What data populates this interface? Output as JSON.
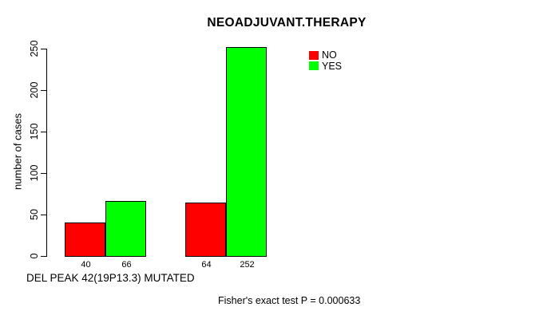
{
  "chart_data": {
    "type": "bar",
    "title": "NEOADJUVANT.THERAPY",
    "ylabel": "number of cases",
    "xlabel": "DEL PEAK 42(19P13.3) MUTATED",
    "footnote": "Fisher's exact test P = 0.000633",
    "ylim": [
      0,
      250
    ],
    "yticks": [
      0,
      50,
      100,
      150,
      200,
      250
    ],
    "grid": false,
    "legend": {
      "position": "topright",
      "entries": [
        {
          "label": "NO",
          "color": "#ff0000"
        },
        {
          "label": "YES",
          "color": "#00ff00"
        }
      ]
    },
    "series": [
      {
        "name": "NO",
        "color": "#ff0000",
        "values": [
          40,
          64
        ]
      },
      {
        "name": "YES",
        "color": "#00ff00",
        "values": [
          66,
          252
        ]
      }
    ],
    "bar_value_labels": [
      "40",
      "66",
      "64",
      "252"
    ],
    "axis_color": "#000000",
    "background": "#ffffff"
  }
}
